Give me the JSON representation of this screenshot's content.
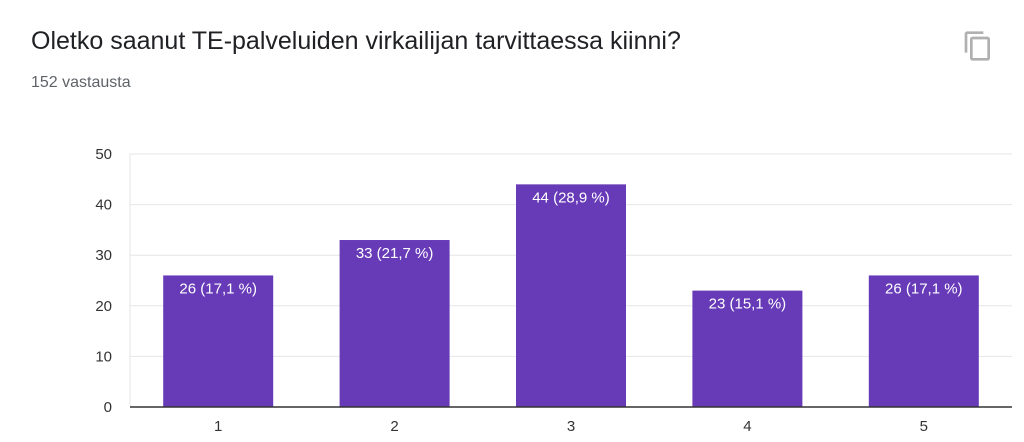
{
  "header": {
    "title": "Oletko saanut TE-palveluiden virkailijan tarvittaessa kiinni?",
    "response_count": "152 vastausta",
    "copy_icon": "copy-icon"
  },
  "colors": {
    "bar": "#673ab7",
    "grid": "#e6e6e6",
    "axis": "#333333"
  },
  "chart_data": {
    "type": "bar",
    "title": "",
    "xlabel": "",
    "ylabel": "",
    "categories": [
      "1",
      "2",
      "3",
      "4",
      "5"
    ],
    "values": [
      26,
      33,
      44,
      23,
      26
    ],
    "data_labels": [
      "26 (17,1 %)",
      "33 (21,7 %)",
      "44 (28,9 %)",
      "23 (15,1 %)",
      "26 (17,1 %)"
    ],
    "ylim": [
      0,
      50
    ],
    "yticks": [
      0,
      10,
      20,
      30,
      40,
      50
    ],
    "grid": true,
    "legend": "none"
  }
}
